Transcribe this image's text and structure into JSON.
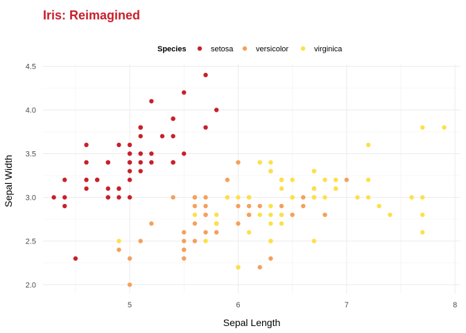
{
  "chart_data": {
    "type": "scatter",
    "title": "Iris: Reimagined",
    "title_color": "#c8202b",
    "xlabel": "Sepal Length",
    "ylabel": "Sepal Width",
    "xlim": [
      4.2,
      8.05
    ],
    "ylim": [
      1.9,
      4.52
    ],
    "x_ticks": [
      5,
      6,
      7,
      8
    ],
    "y_ticks": [
      2.0,
      2.5,
      3.0,
      3.5,
      4.0,
      4.5
    ],
    "y_tick_labels": [
      "2.0",
      "2.5",
      "3.0",
      "3.5",
      "4.0",
      "4.5"
    ],
    "x_tick_labels": [
      "5",
      "6",
      "7",
      "8"
    ],
    "grid": true,
    "legend": {
      "title": "Species",
      "position": "top"
    },
    "series": [
      {
        "name": "setosa",
        "color": "#c8202b",
        "points": [
          [
            5.1,
            3.5
          ],
          [
            4.9,
            3.0
          ],
          [
            4.7,
            3.2
          ],
          [
            4.6,
            3.1
          ],
          [
            5.0,
            3.6
          ],
          [
            5.4,
            3.9
          ],
          [
            4.6,
            3.4
          ],
          [
            5.0,
            3.4
          ],
          [
            4.4,
            2.9
          ],
          [
            4.9,
            3.1
          ],
          [
            5.4,
            3.7
          ],
          [
            4.8,
            3.4
          ],
          [
            4.8,
            3.0
          ],
          [
            4.3,
            3.0
          ],
          [
            5.8,
            4.0
          ],
          [
            5.7,
            4.4
          ],
          [
            5.4,
            3.9
          ],
          [
            5.1,
            3.5
          ],
          [
            5.7,
            3.8
          ],
          [
            5.1,
            3.8
          ],
          [
            5.4,
            3.4
          ],
          [
            5.1,
            3.7
          ],
          [
            4.6,
            3.6
          ],
          [
            5.1,
            3.3
          ],
          [
            4.8,
            3.4
          ],
          [
            5.0,
            3.0
          ],
          [
            5.0,
            3.4
          ],
          [
            5.2,
            3.5
          ],
          [
            5.2,
            3.4
          ],
          [
            4.7,
            3.2
          ],
          [
            4.8,
            3.1
          ],
          [
            5.4,
            3.4
          ],
          [
            5.2,
            4.1
          ],
          [
            5.5,
            4.2
          ],
          [
            4.9,
            3.1
          ],
          [
            5.0,
            3.2
          ],
          [
            5.5,
            3.5
          ],
          [
            4.9,
            3.6
          ],
          [
            4.4,
            3.0
          ],
          [
            5.1,
            3.4
          ],
          [
            5.0,
            3.5
          ],
          [
            4.5,
            2.3
          ],
          [
            4.4,
            3.2
          ],
          [
            5.0,
            3.5
          ],
          [
            5.1,
            3.8
          ],
          [
            4.8,
            3.0
          ],
          [
            5.1,
            3.8
          ],
          [
            4.6,
            3.2
          ],
          [
            5.3,
            3.7
          ],
          [
            5.0,
            3.3
          ]
        ]
      },
      {
        "name": "versicolor",
        "color": "#f4a05c",
        "points": [
          [
            7.0,
            3.2
          ],
          [
            6.4,
            3.2
          ],
          [
            6.9,
            3.1
          ],
          [
            5.5,
            2.3
          ],
          [
            6.5,
            2.8
          ],
          [
            5.7,
            2.8
          ],
          [
            6.3,
            3.3
          ],
          [
            4.9,
            2.4
          ],
          [
            6.6,
            2.9
          ],
          [
            5.2,
            2.7
          ],
          [
            5.0,
            2.0
          ],
          [
            5.9,
            3.0
          ],
          [
            6.0,
            2.2
          ],
          [
            6.1,
            2.9
          ],
          [
            5.6,
            2.9
          ],
          [
            6.7,
            3.1
          ],
          [
            5.6,
            3.0
          ],
          [
            5.8,
            2.7
          ],
          [
            6.2,
            2.2
          ],
          [
            5.6,
            2.5
          ],
          [
            5.9,
            3.2
          ],
          [
            6.1,
            2.8
          ],
          [
            6.3,
            2.5
          ],
          [
            6.1,
            2.8
          ],
          [
            6.4,
            2.9
          ],
          [
            6.6,
            3.0
          ],
          [
            6.8,
            2.8
          ],
          [
            6.7,
            3.0
          ],
          [
            6.0,
            2.9
          ],
          [
            5.7,
            2.6
          ],
          [
            5.5,
            2.4
          ],
          [
            5.5,
            2.4
          ],
          [
            5.8,
            2.7
          ],
          [
            6.0,
            2.7
          ],
          [
            5.4,
            3.0
          ],
          [
            6.0,
            3.4
          ],
          [
            6.7,
            3.1
          ],
          [
            6.3,
            2.3
          ],
          [
            5.6,
            3.0
          ],
          [
            5.5,
            2.5
          ],
          [
            5.5,
            2.6
          ],
          [
            6.1,
            3.0
          ],
          [
            5.8,
            2.6
          ],
          [
            5.0,
            2.3
          ],
          [
            5.6,
            2.7
          ],
          [
            5.7,
            3.0
          ],
          [
            5.7,
            2.9
          ],
          [
            6.2,
            2.9
          ],
          [
            5.1,
            2.5
          ],
          [
            5.7,
            2.8
          ]
        ]
      },
      {
        "name": "virginica",
        "color": "#fde047",
        "points": [
          [
            6.3,
            3.3
          ],
          [
            5.8,
            2.7
          ],
          [
            7.1,
            3.0
          ],
          [
            6.3,
            2.9
          ],
          [
            6.5,
            3.0
          ],
          [
            7.6,
            3.0
          ],
          [
            4.9,
            2.5
          ],
          [
            7.3,
            2.9
          ],
          [
            6.7,
            2.5
          ],
          [
            7.2,
            3.6
          ],
          [
            6.5,
            3.2
          ],
          [
            6.4,
            2.7
          ],
          [
            6.8,
            3.0
          ],
          [
            5.7,
            2.5
          ],
          [
            5.8,
            2.8
          ],
          [
            6.4,
            3.2
          ],
          [
            6.5,
            3.0
          ],
          [
            7.7,
            3.8
          ],
          [
            7.7,
            2.6
          ],
          [
            6.0,
            2.2
          ],
          [
            6.9,
            3.2
          ],
          [
            5.6,
            2.8
          ],
          [
            7.7,
            2.8
          ],
          [
            6.3,
            2.7
          ],
          [
            6.7,
            3.3
          ],
          [
            7.2,
            3.2
          ],
          [
            6.2,
            2.8
          ],
          [
            6.1,
            3.0
          ],
          [
            6.4,
            2.8
          ],
          [
            7.2,
            3.0
          ],
          [
            7.4,
            2.8
          ],
          [
            7.9,
            3.8
          ],
          [
            6.4,
            2.8
          ],
          [
            6.3,
            2.8
          ],
          [
            6.1,
            2.6
          ],
          [
            7.7,
            3.0
          ],
          [
            6.3,
            3.4
          ],
          [
            6.4,
            3.1
          ],
          [
            6.0,
            3.0
          ],
          [
            6.9,
            3.1
          ],
          [
            6.7,
            3.1
          ],
          [
            6.9,
            3.1
          ],
          [
            5.8,
            2.7
          ],
          [
            6.8,
            3.2
          ],
          [
            6.7,
            3.3
          ],
          [
            6.7,
            3.0
          ],
          [
            6.3,
            2.5
          ],
          [
            6.5,
            3.0
          ],
          [
            6.2,
            3.4
          ],
          [
            5.9,
            3.0
          ]
        ]
      }
    ]
  }
}
